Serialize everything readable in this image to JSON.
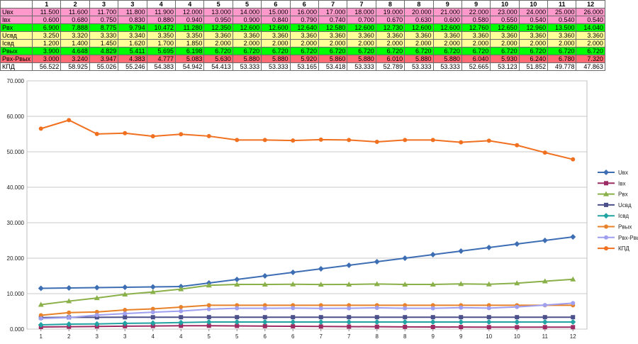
{
  "table": {
    "header": [
      "",
      "1",
      "2",
      "3",
      "3",
      "4",
      "4",
      "5",
      "5",
      "6",
      "6",
      "7",
      "7",
      "8",
      "8",
      "9",
      "9",
      "10",
      "10",
      "11",
      "12"
    ],
    "rows": [
      {
        "label": "Uвх",
        "color": "#ff99cc",
        "cells": [
          "11.500",
          "11.600",
          "11.700",
          "11.800",
          "11.900",
          "12.000",
          "13.000",
          "14.000",
          "15.000",
          "16.000",
          "17.000",
          "18.000",
          "19.000",
          "20.000",
          "21.000",
          "22.000",
          "23.000",
          "24.000",
          "25.000",
          "26.000"
        ]
      },
      {
        "label": "Iвх",
        "color": "#ff99cc",
        "cells": [
          "0.600",
          "0.680",
          "0.750",
          "0.830",
          "0.880",
          "0.940",
          "0.950",
          "0.900",
          "0.840",
          "0.790",
          "0.740",
          "0.700",
          "0.670",
          "0.630",
          "0.600",
          "0.580",
          "0.550",
          "0.540",
          "0.540",
          "0.540"
        ]
      },
      {
        "label": "Pвх",
        "color": "#00ff00",
        "cells": [
          "6.900",
          "7.888",
          "8.775",
          "9.794",
          "10.472",
          "11.280",
          "12.350",
          "12.600",
          "12.600",
          "12.640",
          "12.580",
          "12.600",
          "12.730",
          "12.600",
          "12.600",
          "12.760",
          "12.650",
          "12.960",
          "13.500",
          "14.040"
        ]
      },
      {
        "label": "Uсвд",
        "color": "#ffff99",
        "cells": [
          "3.250",
          "3.320",
          "3.330",
          "3.340",
          "3.350",
          "3.350",
          "3.360",
          "3.360",
          "3.360",
          "3.360",
          "3.360",
          "3.360",
          "3.360",
          "3.360",
          "3.360",
          "3.360",
          "3.360",
          "3.360",
          "3.360",
          "3.360"
        ]
      },
      {
        "label": "Iсвд",
        "color": "#ffff99",
        "cells": [
          "1.200",
          "1.400",
          "1.450",
          "1.620",
          "1.700",
          "1.850",
          "2.000",
          "2.000",
          "2.000",
          "2.000",
          "2.000",
          "2.000",
          "2.000",
          "2.000",
          "2.000",
          "2.000",
          "2.000",
          "2.000",
          "2.000",
          "2.000"
        ]
      },
      {
        "label": "Pвых",
        "color": "#00ff00",
        "cells": [
          "3.900",
          "4.648",
          "4.829",
          "5.411",
          "5.695",
          "6.198",
          "6.720",
          "6.720",
          "6.720",
          "6.720",
          "6.720",
          "6.720",
          "6.720",
          "6.720",
          "6.720",
          "6.720",
          "6.720",
          "6.720",
          "6.720",
          "6.720"
        ]
      },
      {
        "label": "Pвх-Pвых",
        "color": "#ff6b75",
        "cells": [
          "3.000",
          "3.240",
          "3.947",
          "4.383",
          "4.777",
          "5.083",
          "5.630",
          "5.880",
          "5.880",
          "5.920",
          "5.860",
          "5.880",
          "6.010",
          "5.880",
          "5.880",
          "6.040",
          "5.930",
          "6.240",
          "6.780",
          "7.320"
        ]
      },
      {
        "label": "КПД",
        "color": "#ffffff",
        "cells": [
          "56.522",
          "58.925",
          "55.026",
          "55.246",
          "54.383",
          "54.942",
          "54.413",
          "53.333",
          "53.333",
          "53.165",
          "53.418",
          "53.333",
          "52.789",
          "53.333",
          "53.333",
          "52.665",
          "53.123",
          "51.852",
          "49.778",
          "47.863"
        ]
      }
    ]
  },
  "chart_data": {
    "type": "line",
    "categories": [
      "1",
      "2",
      "3",
      "3",
      "4",
      "4",
      "5",
      "5",
      "6",
      "6",
      "7",
      "7",
      "8",
      "8",
      "9",
      "9",
      "10",
      "10",
      "11",
      "12"
    ],
    "ylim": [
      0,
      70
    ],
    "y_ticks": [
      "0.000",
      "10.000",
      "20.000",
      "30.000",
      "40.000",
      "50.000",
      "60.000",
      "70.000"
    ],
    "grid": true,
    "legend_position": "right",
    "series": [
      {
        "name": "Uвх",
        "color": "#3d6eb4",
        "marker": "diamond",
        "values": [
          11.5,
          11.6,
          11.7,
          11.8,
          11.9,
          12,
          13,
          14,
          15,
          16,
          17,
          18,
          19,
          20,
          21,
          22,
          23,
          24,
          25,
          26
        ]
      },
      {
        "name": "Iвх",
        "color": "#9c2b63",
        "marker": "square",
        "values": [
          0.6,
          0.68,
          0.75,
          0.83,
          0.88,
          0.94,
          0.95,
          0.9,
          0.84,
          0.79,
          0.74,
          0.7,
          0.67,
          0.63,
          0.6,
          0.58,
          0.55,
          0.54,
          0.54,
          0.54
        ]
      },
      {
        "name": "Pвх",
        "color": "#8ab04a",
        "marker": "triangle",
        "values": [
          6.9,
          7.888,
          8.775,
          9.794,
          10.472,
          11.28,
          12.35,
          12.6,
          12.6,
          12.64,
          12.58,
          12.6,
          12.73,
          12.6,
          12.6,
          12.76,
          12.65,
          12.96,
          13.5,
          14.04
        ]
      },
      {
        "name": "Uсвд",
        "color": "#4b4f8a",
        "marker": "square",
        "values": [
          3.25,
          3.32,
          3.33,
          3.34,
          3.35,
          3.35,
          3.36,
          3.36,
          3.36,
          3.36,
          3.36,
          3.36,
          3.36,
          3.36,
          3.36,
          3.36,
          3.36,
          3.36,
          3.36,
          3.36
        ]
      },
      {
        "name": "Iсвд",
        "color": "#21a3a3",
        "marker": "diamond",
        "values": [
          1.2,
          1.4,
          1.45,
          1.62,
          1.7,
          1.85,
          2,
          2,
          2,
          2,
          2,
          2,
          2,
          2,
          2,
          2,
          2,
          2,
          2,
          2
        ]
      },
      {
        "name": "Pвых",
        "color": "#e8822a",
        "marker": "circle",
        "values": [
          3.9,
          4.648,
          4.829,
          5.411,
          5.695,
          6.198,
          6.72,
          6.72,
          6.72,
          6.72,
          6.72,
          6.72,
          6.72,
          6.72,
          6.72,
          6.72,
          6.72,
          6.72,
          6.72,
          6.72
        ]
      },
      {
        "name": "Pвх-Pвых",
        "color": "#9f9ff0",
        "marker": "circle",
        "values": [
          3,
          3.24,
          3.947,
          4.383,
          4.777,
          5.083,
          5.63,
          5.88,
          5.88,
          5.92,
          5.86,
          5.88,
          6.01,
          5.88,
          5.88,
          6.04,
          5.93,
          6.24,
          6.78,
          7.32
        ]
      },
      {
        "name": "КПД",
        "color": "#f07020",
        "marker": "circle",
        "values": [
          56.522,
          58.925,
          55.026,
          55.246,
          54.383,
          54.942,
          54.413,
          53.333,
          53.333,
          53.165,
          53.418,
          53.333,
          52.789,
          53.333,
          53.333,
          52.665,
          53.123,
          51.852,
          49.778,
          47.863
        ]
      }
    ]
  }
}
